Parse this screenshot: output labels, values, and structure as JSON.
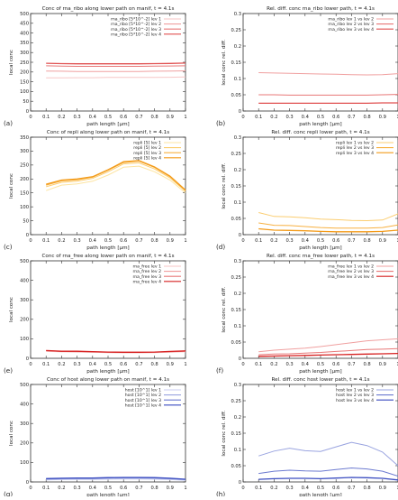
{
  "figure": {
    "panel_labels": [
      "(a)",
      "(b)",
      "(c)",
      "(d)",
      "(e)",
      "(f)",
      "(g)",
      "(h)"
    ]
  },
  "chart_data": [
    {
      "id": "a",
      "type": "line",
      "title": "Conc of rna_ribo along lower path on manif, t = 4.1s",
      "xlabel": "path length [µm]",
      "ylabel": "local conc",
      "xlim": [
        0,
        1
      ],
      "ylim": [
        0,
        500
      ],
      "xticks": [
        "0",
        "0.1",
        "0.2",
        "0.3",
        "0.4",
        "0.5",
        "0.6",
        "0.7",
        "0.8",
        "0.9",
        "1"
      ],
      "yticks": [
        "0",
        "50",
        "100",
        "150",
        "200",
        "250",
        "300",
        "350",
        "400",
        "450",
        "500"
      ],
      "legend_position": "top-right",
      "x": [
        0.1,
        0.2,
        0.3,
        0.4,
        0.5,
        0.6,
        0.7,
        0.8,
        0.9,
        1.0
      ],
      "series": [
        {
          "name": "rna_ribo [5*10^-2] lev 1",
          "color": "#f7c6c6",
          "values": [
            170,
            170,
            171,
            171,
            172,
            172,
            172,
            172,
            173,
            175
          ]
        },
        {
          "name": "rna_ribo [5*10^-2] lev 2",
          "color": "#f0a0a0",
          "values": [
            205,
            204,
            203,
            203,
            203,
            203,
            203,
            204,
            205,
            206
          ]
        },
        {
          "name": "rna_ribo [5*10^-2] lev 3",
          "color": "#e87878",
          "values": [
            232,
            230,
            229,
            229,
            229,
            229,
            229,
            230,
            231,
            232
          ]
        },
        {
          "name": "rna_ribo [5*10^-2] lev 4",
          "color": "#e05050",
          "values": [
            245,
            243,
            242,
            242,
            242,
            242,
            242,
            243,
            244,
            246
          ]
        }
      ]
    },
    {
      "id": "b",
      "type": "line",
      "title": "Rel. diff. conc rna_ribo lower path, t = 4.1s",
      "xlabel": "path length [µm]",
      "ylabel": "local conc rel. diff.",
      "xlim": [
        0,
        1
      ],
      "ylim": [
        0,
        0.3
      ],
      "xticks": [
        "0",
        "0.1",
        "0.2",
        "0.3",
        "0.4",
        "0.5",
        "0.6",
        "0.7",
        "0.8",
        "0.9",
        "1"
      ],
      "yticks": [
        "0",
        "0.05",
        "0.1",
        "0.15",
        "0.2",
        "0.25",
        "0.3"
      ],
      "legend_position": "top-right",
      "x": [
        0.1,
        0.2,
        0.3,
        0.4,
        0.5,
        0.6,
        0.7,
        0.8,
        0.9,
        1.0
      ],
      "series": [
        {
          "name": "rna_ribo lev 1 vs lev 2",
          "color": "#f0a0a0",
          "values": [
            0.118,
            0.117,
            0.116,
            0.115,
            0.114,
            0.113,
            0.112,
            0.111,
            0.112,
            0.115
          ]
        },
        {
          "name": "rna_ribo lev 2 vs lev 3",
          "color": "#e87878",
          "values": [
            0.05,
            0.05,
            0.049,
            0.049,
            0.049,
            0.049,
            0.049,
            0.049,
            0.05,
            0.051
          ]
        },
        {
          "name": "rna_ribo lev 3 vs lev 4",
          "color": "#e05050",
          "values": [
            0.024,
            0.024,
            0.024,
            0.024,
            0.024,
            0.024,
            0.024,
            0.024,
            0.025,
            0.025
          ]
        }
      ]
    },
    {
      "id": "c",
      "type": "line",
      "title": "Conc of repli along lower path on manif, t = 4.1s",
      "xlabel": "path length [µm]",
      "ylabel": "local conc",
      "xlim": [
        0,
        1
      ],
      "ylim": [
        0,
        350
      ],
      "xticks": [
        "0",
        "0.1",
        "0.2",
        "0.3",
        "0.4",
        "0.5",
        "0.6",
        "0.7",
        "0.8",
        "0.9",
        "1"
      ],
      "yticks": [
        "0",
        "50",
        "100",
        "150",
        "200",
        "250",
        "300",
        "350"
      ],
      "legend_position": "top-right",
      "x": [
        0.1,
        0.2,
        0.3,
        0.4,
        0.5,
        0.6,
        0.7,
        0.8,
        0.9,
        1.0
      ],
      "series": [
        {
          "name": "repli [5] lev 1",
          "color": "#fde4a0",
          "values": [
            158,
            178,
            182,
            192,
            214,
            242,
            246,
            226,
            196,
            150
          ]
        },
        {
          "name": "repli [5] lev 2",
          "color": "#fbcd70",
          "values": [
            172,
            188,
            192,
            202,
            226,
            254,
            258,
            236,
            204,
            156
          ]
        },
        {
          "name": "repli [5] lev 3",
          "color": "#f7b040",
          "values": [
            178,
            193,
            197,
            206,
            231,
            259,
            264,
            241,
            208,
            158
          ]
        },
        {
          "name": "repli [5] lev 4",
          "color": "#f39b1a",
          "values": [
            181,
            196,
            200,
            208,
            233,
            262,
            266,
            243,
            210,
            160
          ]
        }
      ]
    },
    {
      "id": "d",
      "type": "line",
      "title": "Rel. diff. conc repli lower path, t = 4.1s",
      "xlabel": "path length [µm]",
      "ylabel": "local conc rel. diff.",
      "xlim": [
        0,
        1
      ],
      "ylim": [
        0,
        0.3
      ],
      "xticks": [
        "0",
        "0.1",
        "0.2",
        "0.3",
        "0.4",
        "0.5",
        "0.6",
        "0.7",
        "0.8",
        "0.9",
        "1"
      ],
      "yticks": [
        "0",
        "0.05",
        "0.1",
        "0.15",
        "0.2",
        "0.25",
        "0.3"
      ],
      "legend_position": "top-right",
      "x": [
        0.1,
        0.2,
        0.3,
        0.4,
        0.5,
        0.6,
        0.7,
        0.8,
        0.9,
        1.0
      ],
      "series": [
        {
          "name": "repli lev 1 vs lev 2",
          "color": "#fbcd70",
          "values": [
            0.068,
            0.056,
            0.055,
            0.052,
            0.048,
            0.046,
            0.044,
            0.043,
            0.045,
            0.064
          ]
        },
        {
          "name": "repli lev 2 vs lev 3",
          "color": "#f7b040",
          "values": [
            0.036,
            0.029,
            0.028,
            0.025,
            0.022,
            0.02,
            0.02,
            0.02,
            0.022,
            0.03
          ]
        },
        {
          "name": "repli lev 3 vs lev 4",
          "color": "#f39b1a",
          "values": [
            0.018,
            0.014,
            0.013,
            0.012,
            0.01,
            0.009,
            0.009,
            0.009,
            0.01,
            0.014
          ]
        }
      ]
    },
    {
      "id": "e",
      "type": "line",
      "title": "Conc of rna_free along lower path on manif, t = 4.1s",
      "xlabel": "path length [µm]",
      "ylabel": "local conc",
      "xlim": [
        0,
        1
      ],
      "ylim": [
        0,
        500
      ],
      "xticks": [
        "0",
        "0.1",
        "0.2",
        "0.3",
        "0.4",
        "0.5",
        "0.6",
        "0.7",
        "0.8",
        "0.9",
        "1"
      ],
      "yticks": [
        "0",
        "100",
        "200",
        "300",
        "400",
        "500"
      ],
      "legend_position": "top-right",
      "x": [
        0.1,
        0.2,
        0.3,
        0.4,
        0.5,
        0.6,
        0.7,
        0.8,
        0.9,
        1.0
      ],
      "series": [
        {
          "name": "rna_free lev 1",
          "color": "#f7c6c6",
          "values": [
            36,
            33,
            32,
            31,
            29,
            28,
            28,
            29,
            31,
            34
          ]
        },
        {
          "name": "rna_free lev 2",
          "color": "#f0a0a0",
          "values": [
            38,
            35,
            34,
            33,
            31,
            30,
            30,
            31,
            33,
            36
          ]
        },
        {
          "name": "rna_free lev 3",
          "color": "#e87878",
          "values": [
            39,
            36,
            35,
            34,
            32,
            31,
            31,
            32,
            34,
            37
          ]
        },
        {
          "name": "rna_free lev 4",
          "color": "#d62020",
          "values": [
            40,
            36,
            36,
            34,
            32,
            31,
            31,
            32,
            35,
            38
          ]
        }
      ]
    },
    {
      "id": "f",
      "type": "line",
      "title": "Rel. diff. conc rna_free lower path, t = 4.1s",
      "xlabel": "path length [µm]",
      "ylabel": "local conc rel. diff.",
      "xlim": [
        0,
        1
      ],
      "ylim": [
        0,
        0.3
      ],
      "xticks": [
        "0",
        "0.1",
        "0.2",
        "0.3",
        "0.4",
        "0.5",
        "0.6",
        "0.7",
        "0.8",
        "0.9",
        "1"
      ],
      "yticks": [
        "0",
        "0.05",
        "0.1",
        "0.15",
        "0.2",
        "0.25",
        "0.3"
      ],
      "legend_position": "top-right",
      "x": [
        0.1,
        0.2,
        0.3,
        0.4,
        0.5,
        0.6,
        0.7,
        0.8,
        0.9,
        1.0
      ],
      "series": [
        {
          "name": "rna_free lev 1 vs lev 2",
          "color": "#f0a0a0",
          "values": [
            0.02,
            0.025,
            0.028,
            0.031,
            0.036,
            0.042,
            0.048,
            0.054,
            0.057,
            0.06
          ]
        },
        {
          "name": "rna_free lev 2 vs lev 3",
          "color": "#e87878",
          "values": [
            0.011,
            0.013,
            0.014,
            0.016,
            0.018,
            0.021,
            0.024,
            0.027,
            0.028,
            0.03
          ]
        },
        {
          "name": "rna_free lev 3 vs lev 4",
          "color": "#d62020",
          "values": [
            0.006,
            0.007,
            0.008,
            0.009,
            0.01,
            0.011,
            0.012,
            0.013,
            0.014,
            0.015
          ]
        }
      ]
    },
    {
      "id": "g",
      "type": "line",
      "title": "Conc of host along lower path on manif, t = 4.1s",
      "xlabel": "path length [µm]",
      "ylabel": "local conc",
      "xlim": [
        0,
        1
      ],
      "ylim": [
        0,
        500
      ],
      "xticks": [
        "0",
        "0.1",
        "0.2",
        "0.3",
        "0.4",
        "0.5",
        "0.6",
        "0.7",
        "0.8",
        "0.9",
        "1"
      ],
      "yticks": [
        "0",
        "100",
        "200",
        "300",
        "400",
        "500"
      ],
      "legend_position": "top-right",
      "x": [
        0.1,
        0.2,
        0.3,
        0.4,
        0.5,
        0.6,
        0.7,
        0.8,
        0.9,
        1.0
      ],
      "series": [
        {
          "name": "host [10^1] lev 1",
          "color": "#c8cdf0",
          "values": [
            10,
            12,
            13,
            13,
            14,
            15,
            15,
            14,
            12,
            9
          ]
        },
        {
          "name": "host [10^1] lev 2",
          "color": "#9aa4e0",
          "values": [
            14,
            16,
            17,
            17,
            19,
            20,
            20,
            19,
            16,
            12
          ]
        },
        {
          "name": "host [10^1] lev 3",
          "color": "#6c7ad0",
          "values": [
            16,
            18,
            19,
            19,
            21,
            22,
            22,
            21,
            18,
            13
          ]
        },
        {
          "name": "host [10^1] lev 4",
          "color": "#3a4cc0",
          "values": [
            17,
            19,
            20,
            20,
            22,
            23,
            23,
            22,
            19,
            14
          ]
        }
      ]
    },
    {
      "id": "h",
      "type": "line",
      "title": "Rel. diff. conc host lower path, t = 4.1s",
      "xlabel": "path length [µm]",
      "ylabel": "local conc rel. diff.",
      "xlim": [
        0,
        1
      ],
      "ylim": [
        0,
        0.3
      ],
      "xticks": [
        "0",
        "0.1",
        "0.2",
        "0.3",
        "0.4",
        "0.5",
        "0.6",
        "0.7",
        "0.8",
        "0.9",
        "1"
      ],
      "yticks": [
        "0",
        "0.05",
        "0.1",
        "0.15",
        "0.2",
        "0.25",
        "0.3"
      ],
      "legend_position": "top-right",
      "x": [
        0.1,
        0.2,
        0.3,
        0.4,
        0.5,
        0.6,
        0.7,
        0.8,
        0.9,
        1.0
      ],
      "series": [
        {
          "name": "host lev 1 vs lev 2",
          "color": "#9aa4e0",
          "values": [
            0.08,
            0.095,
            0.104,
            0.096,
            0.094,
            0.108,
            0.122,
            0.112,
            0.092,
            0.05
          ]
        },
        {
          "name": "host lev 2 vs lev 3",
          "color": "#6c7ad0",
          "values": [
            0.026,
            0.033,
            0.036,
            0.034,
            0.033,
            0.038,
            0.043,
            0.04,
            0.033,
            0.018
          ]
        },
        {
          "name": "host lev 3 vs lev 4",
          "color": "#3a4cc0",
          "values": [
            0.008,
            0.01,
            0.011,
            0.011,
            0.01,
            0.012,
            0.014,
            0.013,
            0.011,
            0.006
          ]
        }
      ]
    }
  ]
}
